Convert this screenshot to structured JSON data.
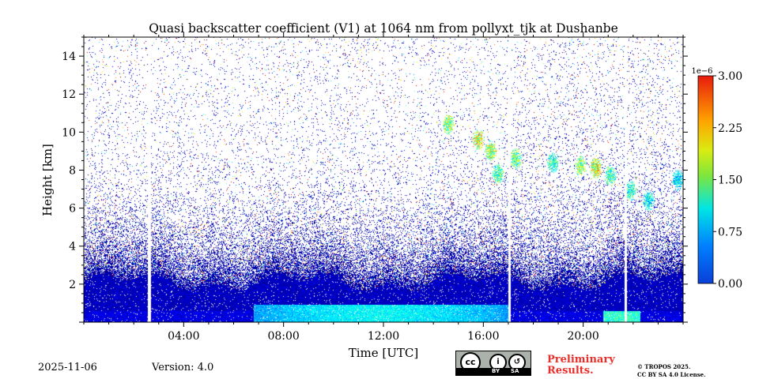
{
  "chart_data": {
    "type": "heatmap",
    "title": "Quasi backscatter coefficient (V1) at 1064 nm from pollyxt_tjk at Dushanbe",
    "xlabel": "Time [UTC]",
    "ylabel": "Height [km]",
    "xlim_hours": [
      0,
      24
    ],
    "ylim_km": [
      0,
      15
    ],
    "x_ticks_hours": [
      4,
      8,
      12,
      16,
      20
    ],
    "x_tick_labels": [
      "04:00",
      "08:00",
      "12:00",
      "16:00",
      "20:00"
    ],
    "y_ticks": [
      2,
      4,
      6,
      8,
      10,
      12,
      14
    ],
    "y_tick_labels": [
      "2",
      "4",
      "6",
      "8",
      "10",
      "12",
      "14"
    ],
    "colorbar": {
      "min": 0.0,
      "max": 3.0,
      "scale_label": "1e−6",
      "ticks": [
        0.0,
        0.75,
        1.5,
        2.25,
        3.0
      ],
      "tick_labels": [
        "0.00",
        "0.75",
        "1.50",
        "2.25",
        "3.00"
      ],
      "colormap": "jet"
    },
    "data_gaps_hours": [
      [
        2.55,
        2.7
      ],
      [
        17.0,
        17.1
      ],
      [
        21.65,
        21.75
      ]
    ],
    "aerosol_layer": {
      "start_hour": 6.8,
      "end_hour": 17.0,
      "top_km": 0.9,
      "value": 1.2
    },
    "cloud_features": [
      {
        "t": 14.6,
        "h": 10.4,
        "value": 1.6
      },
      {
        "t": 15.8,
        "h": 9.6,
        "value": 1.9
      },
      {
        "t": 16.3,
        "h": 9.0,
        "value": 1.7
      },
      {
        "t": 16.6,
        "h": 7.8,
        "value": 1.4
      },
      {
        "t": 17.3,
        "h": 8.6,
        "value": 1.5
      },
      {
        "t": 18.8,
        "h": 8.4,
        "value": 1.3
      },
      {
        "t": 19.9,
        "h": 8.2,
        "value": 1.6
      },
      {
        "t": 20.5,
        "h": 8.1,
        "value": 1.8
      },
      {
        "t": 21.1,
        "h": 7.7,
        "value": 1.4
      },
      {
        "t": 21.9,
        "h": 6.9,
        "value": 1.3
      },
      {
        "t": 22.6,
        "h": 6.4,
        "value": 1.2
      },
      {
        "t": 23.8,
        "h": 7.5,
        "value": 1.1
      }
    ]
  },
  "footer": {
    "date": "2025-11-06",
    "version": "Version: 4.0",
    "preliminary": "Preliminary",
    "results": "Results.",
    "license_line1": "© TROPOS 2025.",
    "license_line2": "CC BY SA 4.0 License.",
    "cc_by": "BY",
    "cc_sa": "SA"
  },
  "colors": {
    "background": "#ffffff",
    "low": "#0a3fd8",
    "mid": "#3fc6ff",
    "high": "#e8302b"
  }
}
